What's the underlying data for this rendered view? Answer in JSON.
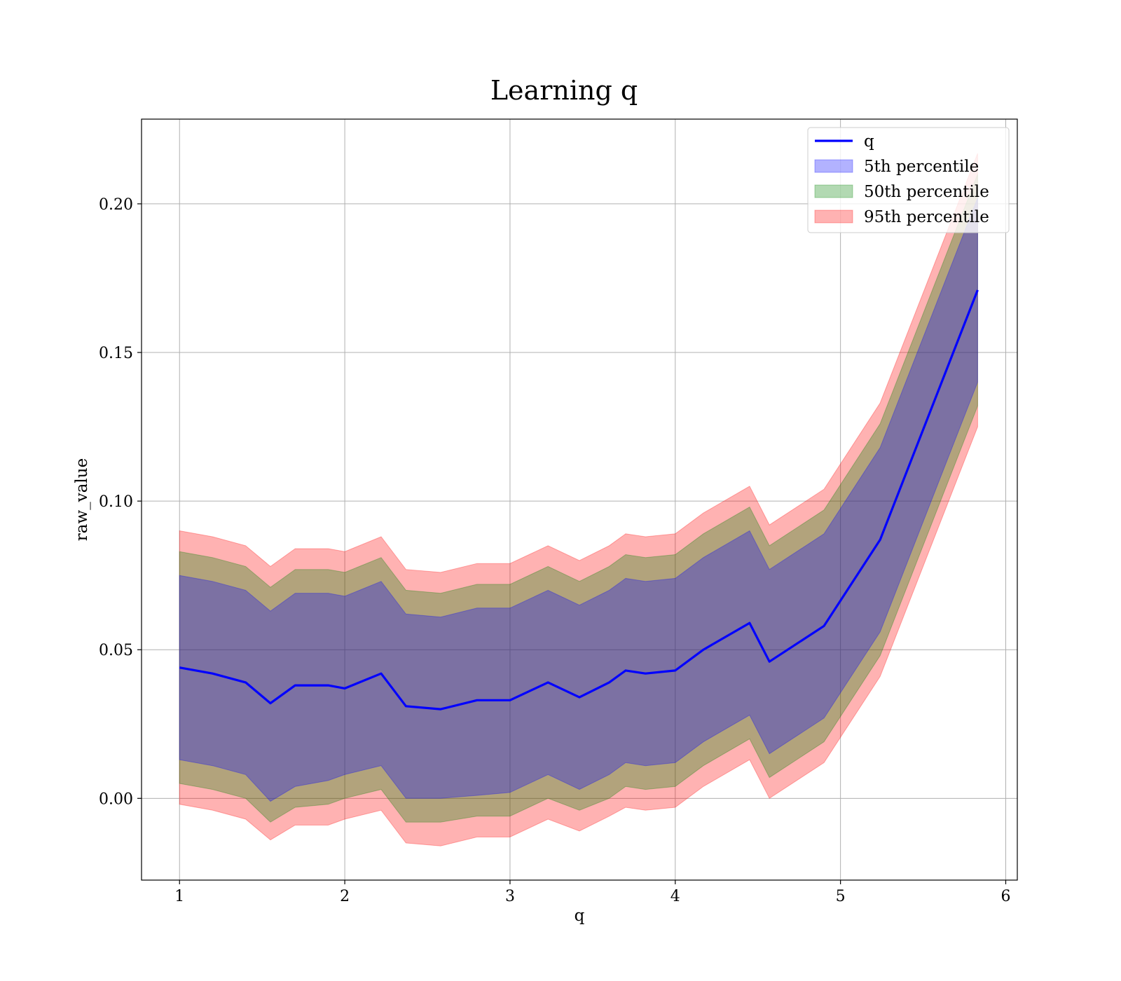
{
  "chart_data": {
    "type": "area",
    "title": "Learning q",
    "xlabel": "q",
    "ylabel": "raw_value",
    "xlim": [
      0.77,
      6.07
    ],
    "ylim": [
      -0.0275,
      0.2285
    ],
    "xticks": [
      "1",
      "2",
      "3",
      "4",
      "5",
      "6"
    ],
    "yticks": [
      "0.00",
      "0.05",
      "0.10",
      "0.15",
      "0.20"
    ],
    "grid": true,
    "legend": {
      "placement": "upper right",
      "entries": [
        "q",
        "5th percentile",
        "50th percentile",
        "95th percentile"
      ]
    },
    "colors": {
      "line": "#0000ff",
      "band_5th": "#0000ff",
      "band_50th": "#008000",
      "band_95th": "#ff0000"
    },
    "x": [
      1.0,
      1.2,
      1.4,
      1.55,
      1.7,
      1.9,
      2.0,
      2.22,
      2.37,
      2.58,
      2.8,
      3.0,
      3.23,
      3.42,
      3.6,
      3.7,
      3.82,
      4.0,
      4.17,
      4.45,
      4.57,
      4.9,
      5.24,
      5.83
    ],
    "series": [
      {
        "name": "q",
        "values": [
          0.044,
          0.042,
          0.039,
          0.032,
          0.038,
          0.038,
          0.037,
          0.042,
          0.031,
          0.03,
          0.033,
          0.033,
          0.039,
          0.034,
          0.039,
          0.043,
          0.042,
          0.043,
          0.05,
          0.059,
          0.046,
          0.058,
          0.087,
          0.171
        ]
      },
      {
        "name": "5th percentile",
        "lower": [
          0.013,
          0.011,
          0.008,
          -0.001,
          0.004,
          0.006,
          0.008,
          0.011,
          0.0,
          0.0,
          0.001,
          0.002,
          0.008,
          0.003,
          0.008,
          0.012,
          0.011,
          0.012,
          0.019,
          0.028,
          0.015,
          0.027,
          0.056,
          0.14
        ],
        "upper": [
          0.075,
          0.073,
          0.07,
          0.063,
          0.069,
          0.069,
          0.068,
          0.073,
          0.062,
          0.061,
          0.064,
          0.064,
          0.07,
          0.065,
          0.07,
          0.074,
          0.073,
          0.074,
          0.081,
          0.09,
          0.077,
          0.089,
          0.118,
          0.202
        ]
      },
      {
        "name": "50th percentile",
        "lower": [
          0.005,
          0.003,
          0.0,
          -0.008,
          -0.003,
          -0.002,
          0.0,
          0.003,
          -0.008,
          -0.008,
          -0.006,
          -0.006,
          0.0,
          -0.004,
          0.0,
          0.004,
          0.003,
          0.004,
          0.011,
          0.02,
          0.007,
          0.019,
          0.048,
          0.132
        ],
        "upper": [
          0.083,
          0.081,
          0.078,
          0.071,
          0.077,
          0.077,
          0.076,
          0.081,
          0.07,
          0.069,
          0.072,
          0.072,
          0.078,
          0.073,
          0.078,
          0.082,
          0.081,
          0.082,
          0.089,
          0.098,
          0.085,
          0.097,
          0.126,
          0.21
        ]
      },
      {
        "name": "95th percentile",
        "lower": [
          -0.002,
          -0.004,
          -0.007,
          -0.014,
          -0.009,
          -0.009,
          -0.007,
          -0.004,
          -0.015,
          -0.016,
          -0.013,
          -0.013,
          -0.007,
          -0.011,
          -0.006,
          -0.003,
          -0.004,
          -0.003,
          0.004,
          0.013,
          0.0,
          0.012,
          0.041,
          0.125
        ],
        "upper": [
          0.09,
          0.088,
          0.085,
          0.078,
          0.084,
          0.084,
          0.083,
          0.088,
          0.077,
          0.076,
          0.079,
          0.079,
          0.085,
          0.08,
          0.085,
          0.089,
          0.088,
          0.089,
          0.096,
          0.105,
          0.092,
          0.104,
          0.133,
          0.217
        ]
      }
    ]
  }
}
